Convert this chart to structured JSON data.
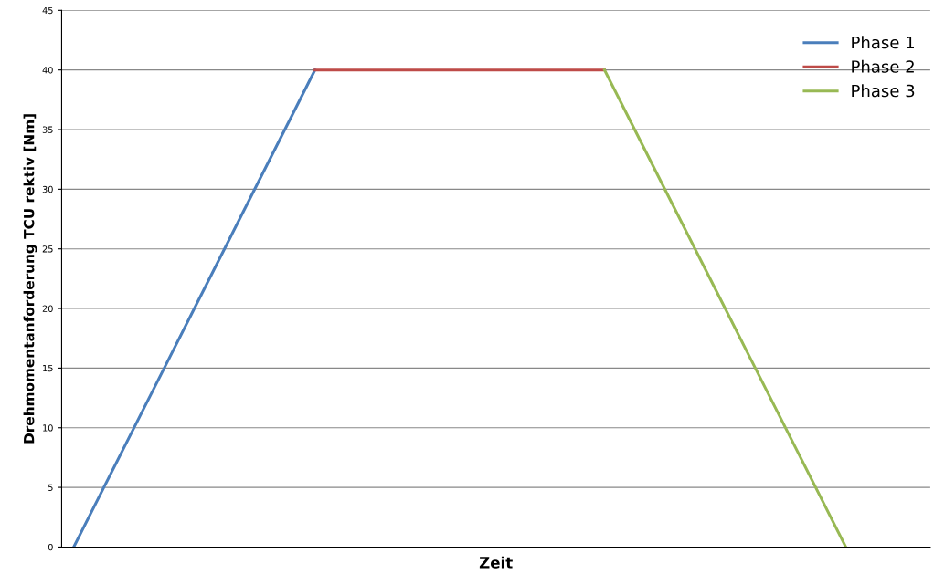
{
  "chart_data": {
    "type": "line",
    "xlabel": "Zeit",
    "ylabel": "Drehmomentanforderung TCU rektiv [Nm]",
    "categories": [
      null,
      null,
      null,
      null,
      null,
      null,
      null,
      null,
      null,
      null,
      null,
      null,
      null,
      null,
      null,
      null,
      null,
      null,
      null,
      null,
      null,
      null,
      null,
      null,
      null,
      null,
      null,
      null,
      null,
      null,
      null,
      null,
      null,
      null,
      null,
      null
    ],
    "series": [
      {
        "name": "Phase 1",
        "color": "#4a7ebb",
        "values": [
          0,
          4,
          8,
          12,
          16,
          20,
          24,
          28,
          32,
          36,
          40,
          null,
          null,
          null,
          null,
          null,
          null,
          null,
          null,
          null,
          null,
          null,
          null,
          null,
          null,
          null,
          null,
          null,
          null,
          null,
          null,
          null,
          null,
          null,
          null,
          null
        ]
      },
      {
        "name": "Phase 2",
        "color": "#be4b48",
        "values": [
          null,
          null,
          null,
          null,
          null,
          null,
          null,
          null,
          null,
          null,
          40,
          40,
          40,
          40,
          40,
          40,
          40,
          40,
          40,
          40,
          40,
          40,
          40,
          null,
          null,
          null,
          null,
          null,
          null,
          null,
          null,
          null,
          null,
          null,
          null,
          null
        ]
      },
      {
        "name": "Phase 3",
        "color": "#98b954",
        "values": [
          null,
          null,
          null,
          null,
          null,
          null,
          null,
          null,
          null,
          null,
          null,
          null,
          null,
          null,
          null,
          null,
          null,
          null,
          null,
          null,
          null,
          null,
          40,
          36,
          32,
          28,
          24,
          20,
          16,
          12,
          8,
          4,
          0,
          null,
          null,
          null
        ]
      }
    ],
    "ylim": [
      0,
      45
    ],
    "yticks": [
      0,
      5,
      10,
      15,
      20,
      25,
      30,
      35,
      40,
      45
    ],
    "grid": "y",
    "legend": "top right",
    "marker": "none",
    "line_style": "solid"
  }
}
